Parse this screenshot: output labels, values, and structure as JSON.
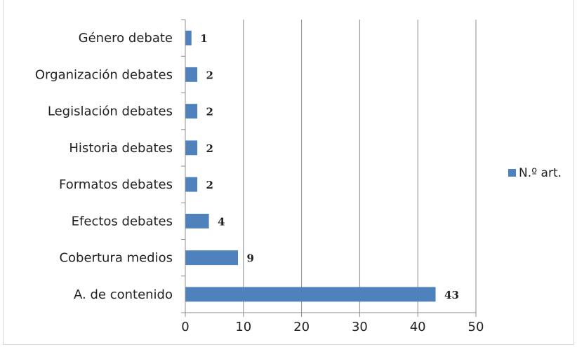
{
  "chart_data": {
    "type": "bar",
    "orientation": "horizontal",
    "categories": [
      "Género debate",
      "Organización debates",
      "Legislación debates",
      "Historia debates",
      "Formatos debates",
      "Efectos debates",
      "Cobertura medios",
      "A. de contenido"
    ],
    "series": [
      {
        "name": "N.º art.",
        "values": [
          1,
          2,
          2,
          2,
          2,
          4,
          9,
          43
        ],
        "color": "#4f81bd"
      }
    ],
    "xlim": [
      0,
      50
    ],
    "xticks": [
      0,
      10,
      20,
      30,
      40,
      50
    ],
    "grid": "vertical",
    "legend_position": "right"
  }
}
